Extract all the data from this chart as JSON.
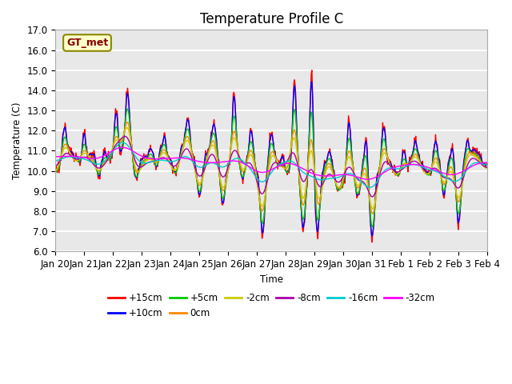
{
  "title": "Temperature Profile C",
  "xlabel": "Time",
  "ylabel": "Temperature (C)",
  "ylim": [
    6.0,
    17.0
  ],
  "yticks": [
    6.0,
    7.0,
    8.0,
    9.0,
    10.0,
    11.0,
    12.0,
    13.0,
    14.0,
    15.0,
    16.0,
    17.0
  ],
  "xtick_labels": [
    "Jan 20",
    "Jan 21",
    "Jan 22",
    "Jan 23",
    "Jan 24",
    "Jan 25",
    "Jan 26",
    "Jan 27",
    "Jan 28",
    "Jan 29",
    "Jan 30",
    "Jan 31",
    "Feb 1",
    "Feb 2",
    "Feb 3",
    "Feb 4"
  ],
  "series": [
    {
      "label": "+15cm",
      "color": "#ff0000",
      "lw": 1.0
    },
    {
      "label": "+10cm",
      "color": "#0000ff",
      "lw": 1.0
    },
    {
      "label": "+5cm",
      "color": "#00cc00",
      "lw": 1.0
    },
    {
      "label": "0cm",
      "color": "#ff8800",
      "lw": 1.0
    },
    {
      "label": "-2cm",
      "color": "#cccc00",
      "lw": 1.0
    },
    {
      "label": "-8cm",
      "color": "#aa00aa",
      "lw": 1.0
    },
    {
      "label": "-16cm",
      "color": "#00cccc",
      "lw": 1.0
    },
    {
      "label": "-32cm",
      "color": "#ff00ff",
      "lw": 1.0
    }
  ],
  "legend_label": "GT_met",
  "legend_facecolor": "#ffffcc",
  "legend_edgecolor": "#888800",
  "bg_color": "#e8e8e8",
  "grid_color": "#ffffff",
  "title_fontsize": 12,
  "axis_fontsize": 8.5
}
